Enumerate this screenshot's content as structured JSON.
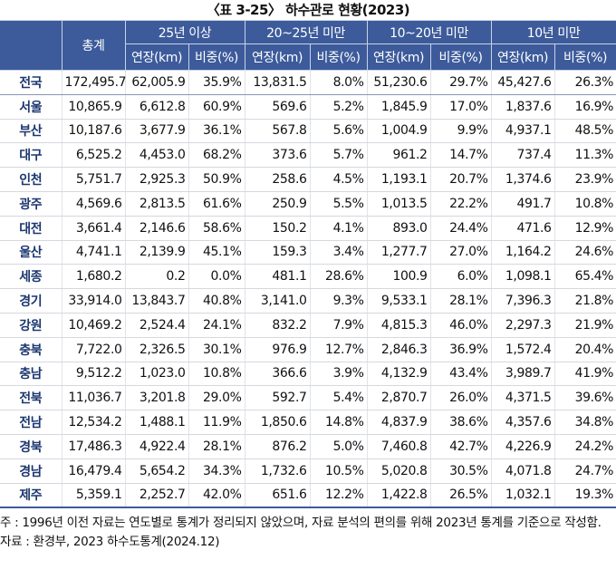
{
  "title": "〈표 3-25〉 하수관로 현황(2023)",
  "table": {
    "header_top": [
      "총계",
      "25년 이상",
      "20~25년 미만",
      "10~20년 미만",
      "10년 미만"
    ],
    "header_sub": [
      "연장(km)",
      "비중(%)",
      "연장(km)",
      "비중(%)",
      "연장(km)",
      "비중(%)",
      "연장(km)",
      "비중(%)"
    ],
    "rows": [
      [
        "전국",
        "172,495.7",
        "62,005.9",
        "35.9%",
        "13,831.5",
        "8.0%",
        "51,230.6",
        "29.7%",
        "45,427.6",
        "26.3%"
      ],
      [
        "서울",
        "10,865.9",
        "6,612.8",
        "60.9%",
        "569.6",
        "5.2%",
        "1,845.9",
        "17.0%",
        "1,837.6",
        "16.9%"
      ],
      [
        "부산",
        "10,187.6",
        "3,677.9",
        "36.1%",
        "567.8",
        "5.6%",
        "1,004.9",
        "9.9%",
        "4,937.1",
        "48.5%"
      ],
      [
        "대구",
        "6,525.2",
        "4,453.0",
        "68.2%",
        "373.6",
        "5.7%",
        "961.2",
        "14.7%",
        "737.4",
        "11.3%"
      ],
      [
        "인천",
        "5,751.7",
        "2,925.3",
        "50.9%",
        "258.6",
        "4.5%",
        "1,193.1",
        "20.7%",
        "1,374.6",
        "23.9%"
      ],
      [
        "광주",
        "4,569.6",
        "2,813.5",
        "61.6%",
        "250.9",
        "5.5%",
        "1,013.5",
        "22.2%",
        "491.7",
        "10.8%"
      ],
      [
        "대전",
        "3,661.4",
        "2,146.6",
        "58.6%",
        "150.2",
        "4.1%",
        "893.0",
        "24.4%",
        "471.6",
        "12.9%"
      ],
      [
        "울산",
        "4,741.1",
        "2,139.9",
        "45.1%",
        "159.3",
        "3.4%",
        "1,277.7",
        "27.0%",
        "1,164.2",
        "24.6%"
      ],
      [
        "세종",
        "1,680.2",
        "0.2",
        "0.0%",
        "481.1",
        "28.6%",
        "100.9",
        "6.0%",
        "1,098.1",
        "65.4%"
      ],
      [
        "경기",
        "33,914.0",
        "13,843.7",
        "40.8%",
        "3,141.0",
        "9.3%",
        "9,533.1",
        "28.1%",
        "7,396.3",
        "21.8%"
      ],
      [
        "강원",
        "10,469.2",
        "2,524.4",
        "24.1%",
        "832.2",
        "7.9%",
        "4,815.3",
        "46.0%",
        "2,297.3",
        "21.9%"
      ],
      [
        "충북",
        "7,722.0",
        "2,326.5",
        "30.1%",
        "976.9",
        "12.7%",
        "2,846.3",
        "36.9%",
        "1,572.4",
        "20.4%"
      ],
      [
        "충남",
        "9,512.2",
        "1,023.0",
        "10.8%",
        "366.6",
        "3.9%",
        "4,132.9",
        "43.4%",
        "3,989.7",
        "41.9%"
      ],
      [
        "전북",
        "11,036.7",
        "3,201.8",
        "29.0%",
        "592.7",
        "5.4%",
        "2,870.7",
        "26.0%",
        "4,371.5",
        "39.6%"
      ],
      [
        "전남",
        "12,534.2",
        "1,488.1",
        "11.9%",
        "1,850.6",
        "14.8%",
        "4,837.9",
        "38.6%",
        "4,357.6",
        "34.8%"
      ],
      [
        "경북",
        "17,486.3",
        "4,922.4",
        "28.1%",
        "876.2",
        "5.0%",
        "7,460.8",
        "42.7%",
        "4,226.9",
        "24.2%"
      ],
      [
        "경남",
        "16,479.4",
        "5,654.2",
        "34.3%",
        "1,732.6",
        "10.5%",
        "5,020.8",
        "30.5%",
        "4,071.8",
        "24.7%"
      ],
      [
        "제주",
        "5,359.1",
        "2,252.7",
        "42.0%",
        "651.6",
        "12.2%",
        "1,422.8",
        "26.5%",
        "1,032.1",
        "19.3%"
      ]
    ]
  },
  "notes": [
    "주 : 1996년 이전 자료는 연도별로 통계가 정리되지 않았으며, 자료 분석의 편의를 위해 2023년 통계를 기준으로 작성함.",
    "자료 : 환경부, 2023 하수도통계(2024.12)"
  ]
}
